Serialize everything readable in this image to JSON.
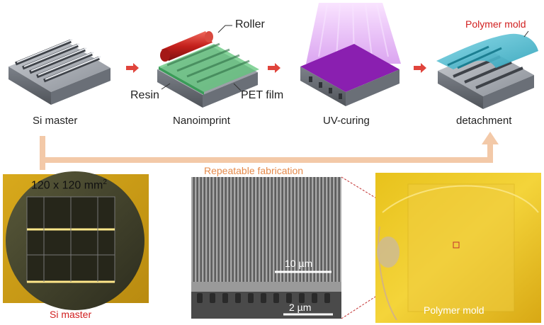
{
  "steps": [
    {
      "caption": "Si master"
    },
    {
      "caption": "Nanoimprint"
    },
    {
      "caption": "UV-curing"
    },
    {
      "caption": "detachment"
    }
  ],
  "callouts": {
    "roller": "Roller",
    "resin": "Resin",
    "pet_film": "PET film",
    "polymer_mold_top": "Polymer mold"
  },
  "loop_label": "Repeatable fabrication",
  "photos": {
    "si_wafer_size": "120 x 120 mm",
    "si_wafer_size_sup": "2",
    "si_wafer_caption": "Si master",
    "sem_scale_top": "10 µm",
    "sem_scale_bottom": "2 µm",
    "polymer_caption": "Polymer mold"
  },
  "colors": {
    "arrow_red": "#e0443c",
    "loop_orange": "#f3c9a8",
    "label_red": "#d11f1f",
    "label_orange": "#e58a4a"
  }
}
